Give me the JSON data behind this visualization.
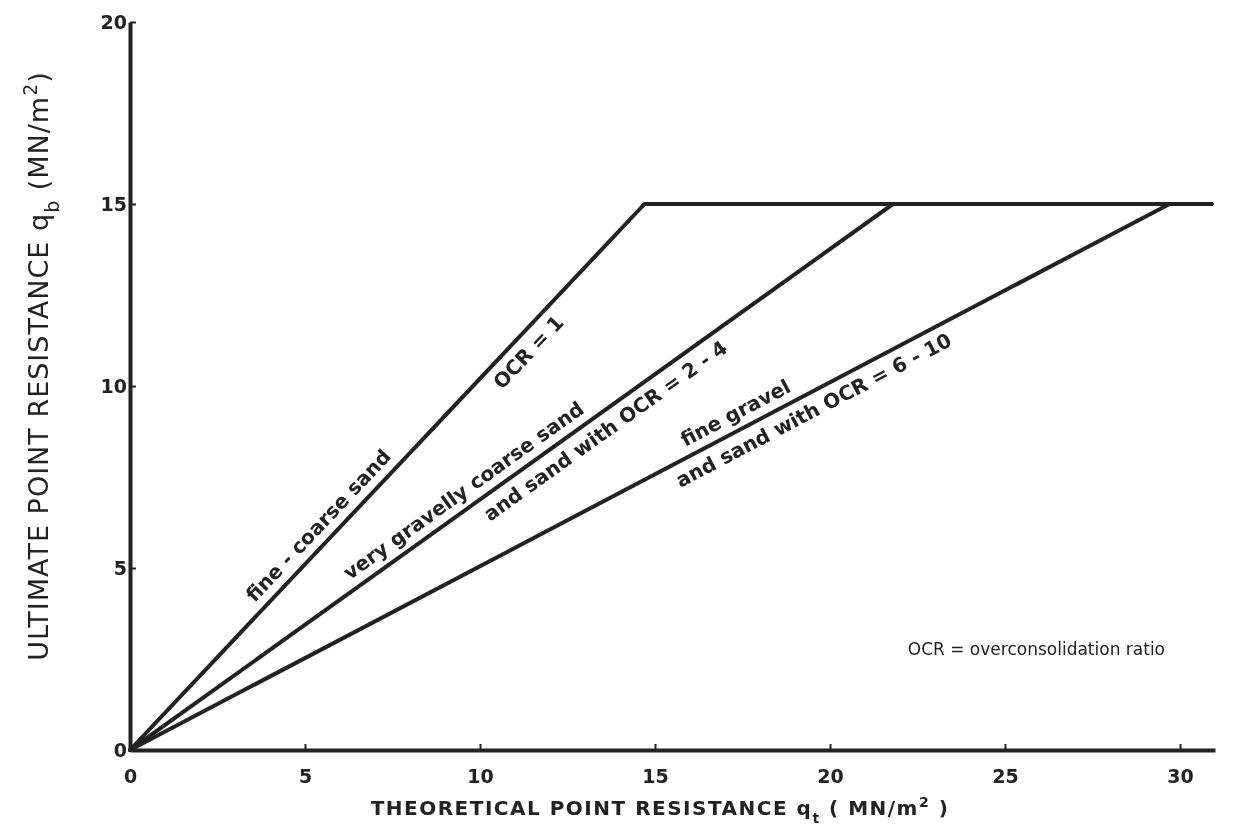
{
  "chart_data": {
    "type": "line",
    "xlabel": "THEORETICAL POINT RESISTANCE q$_{t}$ ( MN/m$^{2}$ )",
    "ylabel": "ULTIMATE POINT RESISTANCE q$_{b}$ (MN/m$^{2}$)",
    "xlim": [
      0,
      31
    ],
    "ylim": [
      0,
      20
    ],
    "xticks": [
      0,
      5,
      10,
      15,
      20,
      25,
      30
    ],
    "yticks": [
      0,
      5,
      10,
      15,
      20
    ],
    "grid": false,
    "marker": "none",
    "line_style": "solid",
    "series": [
      {
        "color": "#222222",
        "x": [
          0,
          14.7,
          30.9
        ],
        "values": [
          0,
          15,
          15
        ]
      },
      {
        "color": "#222222",
        "x": [
          0,
          21.8,
          30.9
        ],
        "values": [
          0,
          15,
          15
        ]
      },
      {
        "color": "#222222",
        "x": [
          0,
          29.7,
          30.9
        ],
        "values": [
          0,
          15,
          15
        ]
      }
    ],
    "annotations": [
      "fine - coarse sand",
      "OCR = 1",
      "very gravelly coarse sand",
      "and sand with OCR = 2 - 4",
      "fine gravel",
      "and sand with OCR = 6 - 10",
      "OCR = overconsolidation ratio"
    ]
  }
}
